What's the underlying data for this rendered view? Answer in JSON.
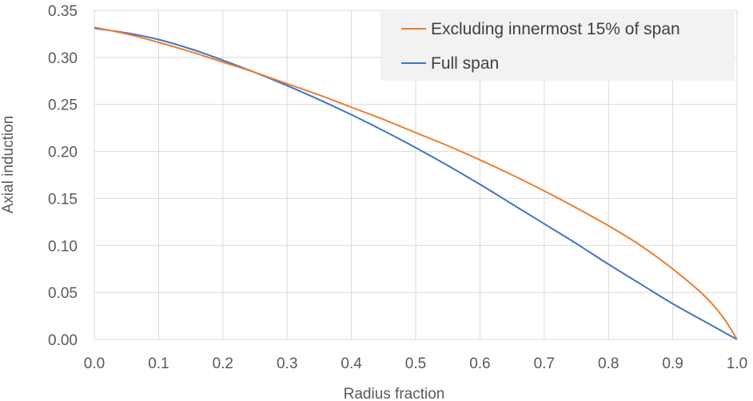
{
  "chart_data": {
    "type": "line",
    "xlabel": "Radius fraction",
    "ylabel": "Axial induction",
    "xlim": [
      0,
      1
    ],
    "ylim": [
      0,
      0.35
    ],
    "x_ticks": [
      "0.0",
      "0.1",
      "0.2",
      "0.3",
      "0.4",
      "0.5",
      "0.6",
      "0.7",
      "0.8",
      "0.9",
      "1.0"
    ],
    "y_ticks": [
      "0.00",
      "0.05",
      "0.10",
      "0.15",
      "0.20",
      "0.25",
      "0.30",
      "0.35"
    ],
    "grid": true,
    "legend_position": "top-right",
    "series": [
      {
        "name": "Excluding innermost 15% of span",
        "color": "#ED7D31",
        "x": [
          0,
          0.05,
          0.1,
          0.15,
          0.2,
          0.25,
          0.3,
          0.35,
          0.4,
          0.45,
          0.5,
          0.55,
          0.6,
          0.65,
          0.7,
          0.75,
          0.8,
          0.85,
          0.9,
          0.95,
          0.98,
          1.0
        ],
        "y": [
          0.332,
          0.325,
          0.316,
          0.306,
          0.295,
          0.284,
          0.272,
          0.26,
          0.247,
          0.234,
          0.22,
          0.206,
          0.191,
          0.175,
          0.158,
          0.14,
          0.121,
          0.1,
          0.075,
          0.046,
          0.022,
          0.0
        ]
      },
      {
        "name": "Full span",
        "color": "#4472C4",
        "x": [
          0,
          0.05,
          0.1,
          0.15,
          0.2,
          0.25,
          0.3,
          0.35,
          0.4,
          0.45,
          0.5,
          0.55,
          0.6,
          0.65,
          0.7,
          0.75,
          0.8,
          0.85,
          0.9,
          0.95,
          1.0
        ],
        "y": [
          0.331,
          0.326,
          0.319,
          0.309,
          0.297,
          0.284,
          0.27,
          0.255,
          0.239,
          0.222,
          0.204,
          0.185,
          0.165,
          0.144,
          0.123,
          0.102,
          0.08,
          0.059,
          0.038,
          0.019,
          0.0
        ]
      }
    ]
  }
}
